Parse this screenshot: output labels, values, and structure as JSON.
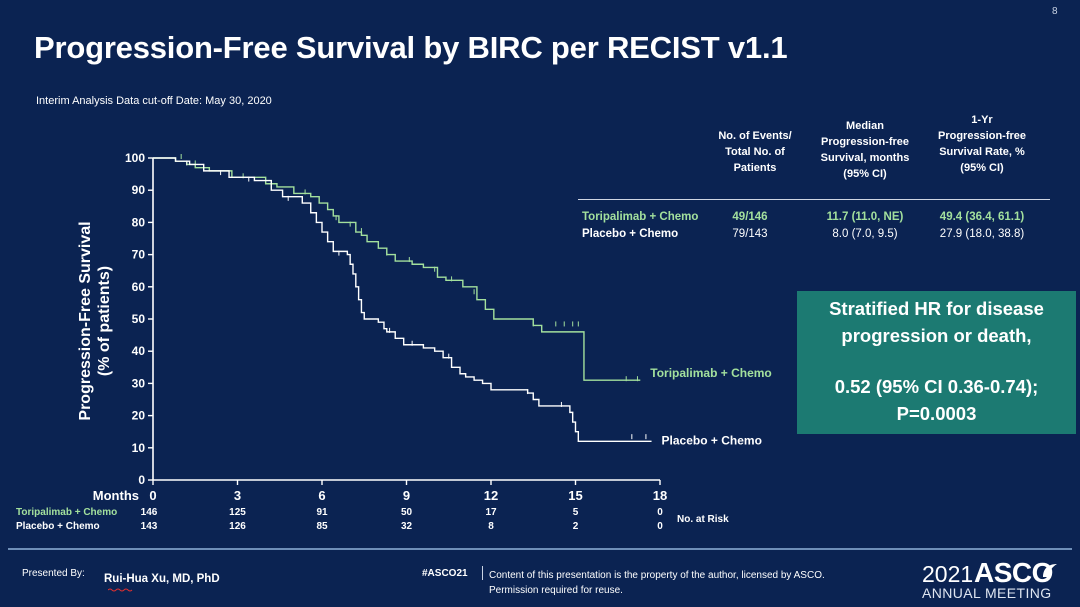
{
  "slide": {
    "page_number": "8",
    "title": "Progression-Free Survival by BIRC per RECIST v1.1",
    "subtitle": "Interim Analysis Data cut-off Date: May 30, 2020"
  },
  "colors": {
    "background": "#0b2352",
    "toripalimab": "#a3e09d",
    "placebo": "#ffffff",
    "hr_box": "#1c7a72"
  },
  "table": {
    "headers": [
      "No. of Events/ Total No. of Patients",
      "Median Progression-free Survival, months (95% CI)",
      "1-Yr Progression-free Survival Rate, % (95% CI)"
    ],
    "header_lines": [
      [
        "No. of Events/",
        "Total No. of",
        "Patients"
      ],
      [
        "Median",
        "Progression-free",
        "Survival, months",
        "(95% CI)"
      ],
      [
        "1-Yr",
        "Progression-free",
        "Survival Rate, %",
        "(95% CI)"
      ]
    ],
    "rows": [
      {
        "arm": "Toripalimab + Chemo",
        "events": "49/146",
        "median": "11.7 (11.0, NE)",
        "rate": "49.4 (36.4, 61.1)"
      },
      {
        "arm": "Placebo + Chemo",
        "events": "79/143",
        "median": "8.0 (7.0, 9.5)",
        "rate": "27.9 (18.0, 38.8)"
      }
    ]
  },
  "hr_box": {
    "line1": "Stratified HR for disease",
    "line2": "progression or death,",
    "line3": "0.52 (95% CI 0.36-0.74);",
    "line4": "P=0.0003"
  },
  "chart_data": {
    "type": "line",
    "title": "",
    "ylabel": "Progression-Free Survival (% of patients)",
    "ylabel_lines": [
      "Progression-Free Survival",
      "(% of patients)"
    ],
    "xlabel": "Months",
    "xlim": [
      0,
      18
    ],
    "ylim": [
      0,
      100
    ],
    "x_ticks": [
      0,
      3,
      6,
      9,
      12,
      15,
      18
    ],
    "y_ticks": [
      0,
      10,
      20,
      30,
      40,
      50,
      60,
      70,
      80,
      90,
      100
    ],
    "grid": false,
    "series": [
      {
        "name": "Toripalimab + Chemo",
        "color": "#a3e09d",
        "step_points": [
          [
            0,
            100
          ],
          [
            0.8,
            99
          ],
          [
            1.2,
            98
          ],
          [
            1.5,
            97
          ],
          [
            2,
            96
          ],
          [
            2.8,
            94
          ],
          [
            3.6,
            94
          ],
          [
            4,
            92
          ],
          [
            4.4,
            91
          ],
          [
            5,
            89
          ],
          [
            5.6,
            88
          ],
          [
            5.9,
            86
          ],
          [
            6.2,
            84
          ],
          [
            6.4,
            82
          ],
          [
            6.6,
            80
          ],
          [
            7.2,
            77
          ],
          [
            7.4,
            76
          ],
          [
            7.6,
            74
          ],
          [
            8,
            72
          ],
          [
            8.3,
            70
          ],
          [
            8.6,
            68
          ],
          [
            9.2,
            67
          ],
          [
            9.6,
            66
          ],
          [
            10.1,
            63
          ],
          [
            10.4,
            62
          ],
          [
            11,
            60
          ],
          [
            11.5,
            56
          ],
          [
            11.8,
            53
          ],
          [
            12.1,
            50
          ],
          [
            13.5,
            48
          ],
          [
            13.8,
            46
          ],
          [
            15.2,
            46
          ],
          [
            15.3,
            31
          ],
          [
            17.3,
            31
          ]
        ],
        "censor_marks": [
          [
            1,
            100
          ],
          [
            1.5,
            98
          ],
          [
            2.7,
            95
          ],
          [
            3.2,
            94
          ],
          [
            4.2,
            91
          ],
          [
            5.4,
            89
          ],
          [
            6.5,
            81
          ],
          [
            7,
            79
          ],
          [
            7.4,
            77
          ],
          [
            8.3,
            70
          ],
          [
            9.1,
            68
          ],
          [
            10,
            65
          ],
          [
            10.6,
            62
          ],
          [
            11.4,
            58
          ],
          [
            13.5,
            48
          ],
          [
            14.3,
            48
          ],
          [
            14.6,
            48
          ],
          [
            14.9,
            48
          ],
          [
            15.1,
            48
          ],
          [
            16.8,
            31
          ],
          [
            17.2,
            31
          ]
        ],
        "end_label": "Toripalimab + Chemo"
      },
      {
        "name": "Placebo + Chemo",
        "color": "#ffffff",
        "step_points": [
          [
            0,
            100
          ],
          [
            0.8,
            99
          ],
          [
            1.3,
            98
          ],
          [
            1.8,
            96
          ],
          [
            2.7,
            94
          ],
          [
            3.6,
            93
          ],
          [
            4.2,
            90
          ],
          [
            4.6,
            88
          ],
          [
            5.3,
            86
          ],
          [
            5.6,
            83
          ],
          [
            5.8,
            80
          ],
          [
            6,
            77
          ],
          [
            6.2,
            74
          ],
          [
            6.4,
            71
          ],
          [
            6.9,
            70
          ],
          [
            7,
            67
          ],
          [
            7.1,
            64
          ],
          [
            7.2,
            60
          ],
          [
            7.3,
            56
          ],
          [
            7.4,
            52
          ],
          [
            7.5,
            50
          ],
          [
            8,
            49
          ],
          [
            8.2,
            47
          ],
          [
            8.3,
            46
          ],
          [
            8.6,
            44
          ],
          [
            8.9,
            42
          ],
          [
            9.6,
            41
          ],
          [
            10,
            40
          ],
          [
            10.3,
            38
          ],
          [
            10.6,
            35
          ],
          [
            10.9,
            33
          ],
          [
            11.1,
            32
          ],
          [
            11.4,
            31
          ],
          [
            11.7,
            30
          ],
          [
            12,
            28
          ],
          [
            13.3,
            27
          ],
          [
            13.5,
            25
          ],
          [
            13.7,
            23
          ],
          [
            14.7,
            23
          ],
          [
            14.8,
            21
          ],
          [
            14.9,
            18
          ],
          [
            15,
            15
          ],
          [
            15.1,
            12
          ],
          [
            17.7,
            12
          ]
        ],
        "censor_marks": [
          [
            1.2,
            98
          ],
          [
            2.4,
            95
          ],
          [
            3.4,
            93
          ],
          [
            4.8,
            87
          ],
          [
            6.6,
            70
          ],
          [
            8.4,
            46
          ],
          [
            9.2,
            42
          ],
          [
            10.5,
            38
          ],
          [
            13.3,
            27
          ],
          [
            14.5,
            23
          ],
          [
            17,
            13
          ],
          [
            17.5,
            13
          ]
        ],
        "end_label": "Placebo + Chemo"
      }
    ],
    "risk_table": {
      "title": "No. at Risk",
      "times": [
        0,
        3,
        6,
        9,
        12,
        15,
        18
      ],
      "rows": [
        {
          "name": "Toripalimab + Chemo",
          "values": [
            146,
            125,
            91,
            50,
            17,
            5,
            0
          ]
        },
        {
          "name": "Placebo + Chemo",
          "values": [
            143,
            126,
            85,
            32,
            8,
            2,
            0
          ]
        }
      ]
    }
  },
  "footer": {
    "presented_by": "Presented By:",
    "presenter": "Rui-Hua Xu, MD, PhD",
    "hashtag": "#ASCO21",
    "disclaimer_line1": "Content of this presentation is the property of the author, licensed by ASCO.",
    "disclaimer_line2": "Permission required for reuse.",
    "logo_year": "2021",
    "logo_name": "ASCO",
    "logo_sub": "ANNUAL MEETING"
  }
}
